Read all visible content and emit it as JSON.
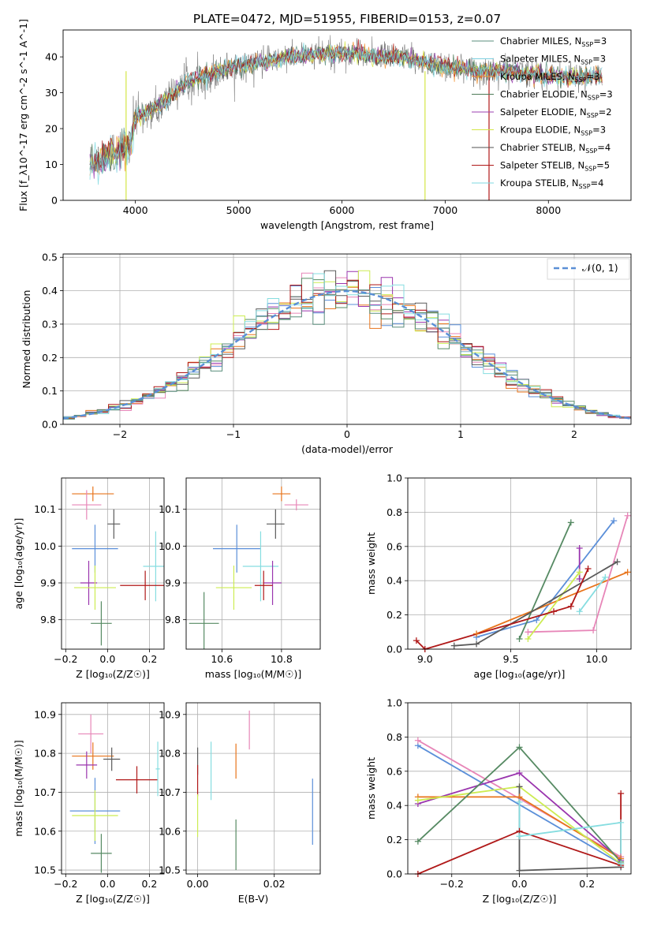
{
  "figure": {
    "title": "PLATE=0472, MJD=51955, FIBERID=0153, z=0.07"
  },
  "colors": {
    "C_MILES": "#5b8e7d",
    "S_MILES": "#7ecfe0",
    "K_MILES": "#f28e2b",
    "C_ELODIE": "#4e7a58",
    "S_ELODIE": "#9b3fb1",
    "K_ELODIE": "#d3e646",
    "C_STELIB": "#505050",
    "S_STELIB": "#b01818",
    "K_STELIB": "#7fd9e0",
    "norm": "#5a8fd6",
    "blue": "#5b8fd9",
    "orange": "#e8741b",
    "pink": "#e786b8",
    "purple": "#9a35ae",
    "green": "#568a63",
    "yellow": "#ccec52",
    "cyan": "#86dde0",
    "gray": "#5a5a5a",
    "red": "#b01818"
  },
  "chart_data": [
    {
      "id": "spectrum",
      "type": "line",
      "xlabel": "wavelength [Angstrom, rest frame]",
      "ylabel": "Flux [f_λ10^-17 erg cm^-2 s^-1 A^-1]",
      "xlim": [
        3300,
        8800
      ],
      "ylim": [
        0,
        47.5
      ],
      "xticks": [
        4000,
        5000,
        6000,
        7000,
        8000
      ],
      "yticks": [
        0,
        10,
        20,
        30,
        40
      ],
      "grid": false,
      "legend_position": "top-right",
      "continuum": [
        [
          3550,
          10
        ],
        [
          3700,
          12
        ],
        [
          3850,
          14
        ],
        [
          3950,
          15
        ],
        [
          4000,
          23
        ],
        [
          4150,
          25
        ],
        [
          4300,
          28
        ],
        [
          4500,
          33
        ],
        [
          4700,
          35
        ],
        [
          4900,
          37
        ],
        [
          5100,
          38
        ],
        [
          5300,
          39
        ],
        [
          5500,
          40
        ],
        [
          5700,
          40.5
        ],
        [
          5900,
          41
        ],
        [
          6100,
          41
        ],
        [
          6300,
          40
        ],
        [
          6500,
          40
        ],
        [
          6700,
          39
        ],
        [
          6900,
          38
        ],
        [
          7100,
          37
        ],
        [
          7300,
          36
        ],
        [
          7500,
          36
        ],
        [
          7700,
          35.5
        ],
        [
          7900,
          35
        ],
        [
          8100,
          34.5
        ],
        [
          8300,
          34.5
        ],
        [
          8500,
          34.5
        ]
      ],
      "series": [
        {
          "name": "Chabrier MILES",
          "nssp": 3,
          "color_key": "C_MILES"
        },
        {
          "name": "Salpeter MILES",
          "nssp": 3,
          "color_key": "S_MILES"
        },
        {
          "name": "Kroupa MILES",
          "nssp": 3,
          "color_key": "K_MILES"
        },
        {
          "name": "Chabrier ELODIE",
          "nssp": 3,
          "color_key": "C_ELODIE"
        },
        {
          "name": "Salpeter ELODIE",
          "nssp": 2,
          "color_key": "S_ELODIE"
        },
        {
          "name": "Kroupa ELODIE",
          "nssp": 3,
          "color_key": "K_ELODIE"
        },
        {
          "name": "Chabrier STELIB",
          "nssp": 4,
          "color_key": "C_STELIB"
        },
        {
          "name": "Salpeter STELIB",
          "nssp": 5,
          "color_key": "S_STELIB"
        },
        {
          "name": "Kroupa STELIB",
          "nssp": 4,
          "color_key": "K_STELIB"
        }
      ]
    },
    {
      "id": "residuals",
      "type": "line",
      "xlabel": "(data-model)/error",
      "ylabel": "Normed distribution",
      "xlim": [
        -2.5,
        2.5
      ],
      "ylim": [
        0,
        0.51
      ],
      "xticks": [
        -2,
        -1,
        0,
        1,
        2
      ],
      "yticks": [
        0.0,
        0.1,
        0.2,
        0.3,
        0.4,
        0.5
      ],
      "grid": true,
      "legend_position": "top-right",
      "legend_label": "𝒩(0, 1)",
      "bin_width": 0.1,
      "hist_colors": [
        "blue",
        "orange",
        "pink",
        "purple",
        "green",
        "yellow",
        "gray",
        "red",
        "cyan",
        "C_MILES"
      ]
    },
    {
      "id": "age_Z",
      "type": "scatter",
      "xlabel": "Z [log₁₀(Z/Z☉)]",
      "ylabel": "age  [log₁₀(age/yr)]",
      "xlim": [
        -0.22,
        0.27
      ],
      "ylim": [
        9.72,
        10.185
      ],
      "xticks": [
        -0.2,
        0.0,
        0.2
      ],
      "yticks": [
        9.8,
        9.9,
        10.0,
        10.1
      ],
      "grid": true,
      "points": [
        {
          "c": "orange",
          "x": -0.07,
          "y": 10.142,
          "ex": 0.1,
          "ey": 0.02
        },
        {
          "c": "pink",
          "x": -0.1,
          "y": 10.112,
          "ex": 0.07,
          "ey": 0.04
        },
        {
          "c": "gray",
          "x": 0.03,
          "y": 10.06,
          "ex": 0.03,
          "ey": 0.04
        },
        {
          "c": "blue",
          "x": -0.06,
          "y": 9.993,
          "ex": 0.11,
          "ey": 0.065
        },
        {
          "c": "cyan",
          "x": 0.23,
          "y": 9.945,
          "ex": 0.06,
          "ey": 0.095
        },
        {
          "c": "purple",
          "x": -0.09,
          "y": 9.9,
          "ex": 0.04,
          "ey": 0.06
        },
        {
          "c": "red",
          "x": 0.18,
          "y": 9.893,
          "ex": 0.12,
          "ey": 0.04
        },
        {
          "c": "yellow",
          "x": -0.06,
          "y": 9.887,
          "ex": 0.1,
          "ey": 0.06
        },
        {
          "c": "green",
          "x": -0.03,
          "y": 9.79,
          "ex": 0.05,
          "ey": 0.06
        }
      ]
    },
    {
      "id": "age_mass",
      "type": "scatter",
      "xlabel": "mass [log₁₀(M/M☉)]",
      "ylabel": "",
      "xlim": [
        10.48,
        10.93
      ],
      "ylim": [
        9.72,
        10.185
      ],
      "xticks": [
        10.6,
        10.8
      ],
      "yticks": [
        9.8,
        9.9,
        10.0,
        10.1
      ],
      "grid": true,
      "points": [
        {
          "c": "orange",
          "x": 10.8,
          "y": 10.142,
          "ex": 0.03,
          "ey": 0.02
        },
        {
          "c": "pink",
          "x": 10.85,
          "y": 10.112,
          "ex": 0.04,
          "ey": 0.015
        },
        {
          "c": "gray",
          "x": 10.78,
          "y": 10.06,
          "ex": 0.03,
          "ey": 0.04
        },
        {
          "c": "blue",
          "x": 10.65,
          "y": 9.993,
          "ex": 0.08,
          "ey": 0.065
        },
        {
          "c": "cyan",
          "x": 10.73,
          "y": 9.945,
          "ex": 0.06,
          "ey": 0.095
        },
        {
          "c": "purple",
          "x": 10.77,
          "y": 9.9,
          "ex": 0.03,
          "ey": 0.06
        },
        {
          "c": "red",
          "x": 10.74,
          "y": 9.893,
          "ex": 0.03,
          "ey": 0.04
        },
        {
          "c": "yellow",
          "x": 10.64,
          "y": 9.887,
          "ex": 0.06,
          "ey": 0.06
        },
        {
          "c": "green",
          "x": 10.54,
          "y": 9.79,
          "ex": 0.05,
          "ey": 0.085
        }
      ]
    },
    {
      "id": "weight_age",
      "type": "line",
      "xlabel": "age  [log₁₀(age/yr)]",
      "ylabel": "mass weight",
      "xlim": [
        8.9,
        10.2
      ],
      "ylim": [
        0,
        1.0
      ],
      "xticks": [
        9.0,
        9.5,
        10.0
      ],
      "yticks": [
        0.0,
        0.2,
        0.4,
        0.6,
        0.8,
        1.0
      ],
      "grid": true,
      "series": [
        {
          "c": "blue",
          "pts": [
            [
              9.3,
              0.07
            ],
            [
              9.65,
              0.17
            ],
            [
              10.1,
              0.75
            ]
          ]
        },
        {
          "c": "orange",
          "pts": [
            [
              9.3,
              0.09
            ],
            [
              10.18,
              0.45
            ]
          ]
        },
        {
          "c": "pink",
          "pts": [
            [
              9.6,
              0.1
            ],
            [
              9.98,
              0.11
            ],
            [
              10.18,
              0.78
            ]
          ]
        },
        {
          "c": "purple",
          "pts": [
            [
              9.9,
              0.41
            ],
            [
              9.9,
              0.59
            ]
          ]
        },
        {
          "c": "green",
          "pts": [
            [
              9.55,
              0.06
            ],
            [
              9.85,
              0.74
            ]
          ]
        },
        {
          "c": "yellow",
          "pts": [
            [
              9.6,
              0.06
            ],
            [
              9.9,
              0.45
            ]
          ]
        },
        {
          "c": "gray",
          "pts": [
            [
              9.17,
              0.02
            ],
            [
              9.3,
              0.03
            ],
            [
              10.12,
              0.51
            ]
          ]
        },
        {
          "c": "red",
          "pts": [
            [
              8.95,
              0.05
            ],
            [
              9.0,
              0.0
            ],
            [
              9.75,
              0.22
            ],
            [
              9.85,
              0.25
            ],
            [
              9.95,
              0.47
            ]
          ]
        },
        {
          "c": "cyan",
          "pts": [
            [
              9.9,
              0.22
            ],
            [
              10.05,
              0.42
            ]
          ]
        }
      ]
    },
    {
      "id": "mass_Z",
      "type": "scatter",
      "xlabel": "Z [log₁₀(Z/Z☉)]",
      "ylabel": "mass [log₁₀(M/M☉)]",
      "xlim": [
        -0.22,
        0.27
      ],
      "ylim": [
        10.49,
        10.93
      ],
      "xticks": [
        -0.2,
        0.0,
        0.2
      ],
      "yticks": [
        10.5,
        10.6,
        10.7,
        10.8,
        10.9
      ],
      "grid": true,
      "points": [
        {
          "c": "pink",
          "x": -0.08,
          "y": 10.85,
          "ex": 0.06,
          "ey": 0.05
        },
        {
          "c": "orange",
          "x": -0.07,
          "y": 10.793,
          "ex": 0.1,
          "ey": 0.035
        },
        {
          "c": "gray",
          "x": 0.02,
          "y": 10.785,
          "ex": 0.04,
          "ey": 0.03
        },
        {
          "c": "purple",
          "x": -0.1,
          "y": 10.77,
          "ex": 0.05,
          "ey": 0.035
        },
        {
          "c": "red",
          "x": 0.14,
          "y": 10.732,
          "ex": 0.1,
          "ey": 0.035
        },
        {
          "c": "cyan",
          "x": 0.24,
          "y": 10.76,
          "ex": 0.01,
          "ey": 0.07
        },
        {
          "c": "blue",
          "x": -0.06,
          "y": 10.652,
          "ex": 0.12,
          "ey": 0.085
        },
        {
          "c": "yellow",
          "x": -0.06,
          "y": 10.64,
          "ex": 0.11,
          "ey": 0.065
        },
        {
          "c": "green",
          "x": -0.03,
          "y": 10.543,
          "ex": 0.05,
          "ey": 0.05
        }
      ]
    },
    {
      "id": "mass_ebv",
      "type": "scatter",
      "xlabel": "E(B-V)",
      "ylabel": "",
      "xlim": [
        -0.003,
        0.032
      ],
      "ylim": [
        10.49,
        10.93
      ],
      "xticks": [
        0.0,
        0.02
      ],
      "yticks": [
        10.5,
        10.6,
        10.7,
        10.8,
        10.9
      ],
      "grid": true,
      "points": [
        {
          "c": "pink",
          "x": 0.0135,
          "y": 10.86,
          "ex": 0,
          "ey": 0.05
        },
        {
          "c": "orange",
          "x": 0.01,
          "y": 10.78,
          "ex": 0,
          "ey": 0.045
        },
        {
          "c": "gray",
          "x": 0.0,
          "y": 10.78,
          "ex": 0,
          "ey": 0.035
        },
        {
          "c": "red",
          "x": 0.0,
          "y": 10.73,
          "ex": 0,
          "ey": 0.04
        },
        {
          "c": "cyan",
          "x": 0.0035,
          "y": 10.755,
          "ex": 0,
          "ey": 0.075
        },
        {
          "c": "yellow",
          "x": 0.0,
          "y": 10.64,
          "ex": 0,
          "ey": 0.055
        },
        {
          "c": "blue",
          "x": 0.03,
          "y": 10.65,
          "ex": 0,
          "ey": 0.085
        },
        {
          "c": "green",
          "x": 0.01,
          "y": 10.565,
          "ex": 0,
          "ey": 0.065
        }
      ]
    },
    {
      "id": "weight_Z",
      "type": "line",
      "xlabel": "Z [log₁₀(Z/Z☉)]",
      "ylabel": "mass weight",
      "xlim": [
        -0.33,
        0.33
      ],
      "ylim": [
        0,
        1.0
      ],
      "xticks": [
        -0.2,
        0.0,
        0.2
      ],
      "yticks": [
        0.0,
        0.2,
        0.4,
        0.6,
        0.8,
        1.0
      ],
      "grid": true,
      "series": [
        {
          "c": "blue",
          "pts": [
            [
              -0.3,
              0.75
            ],
            [
              0.3,
              0.06
            ]
          ]
        },
        {
          "c": "pink",
          "pts": [
            [
              -0.3,
              0.78
            ],
            [
              0.3,
              0.1
            ]
          ]
        },
        {
          "c": "purple",
          "pts": [
            [
              -0.3,
              0.41
            ],
            [
              0.0,
              0.59
            ],
            [
              0.3,
              0.08
            ]
          ]
        },
        {
          "c": "orange",
          "pts": [
            [
              -0.3,
              0.45
            ],
            [
              0.0,
              0.45
            ],
            [
              0.3,
              0.09
            ]
          ]
        },
        {
          "c": "yellow",
          "pts": [
            [
              -0.3,
              0.43
            ],
            [
              0.0,
              0.51
            ],
            [
              0.3,
              0.06
            ]
          ]
        },
        {
          "c": "green",
          "pts": [
            [
              -0.3,
              0.19
            ],
            [
              0.0,
              0.74
            ],
            [
              0.3,
              0.07
            ]
          ]
        },
        {
          "c": "gray",
          "pts": [
            [
              0.0,
              0.51
            ],
            [
              0.0,
              0.02
            ],
            [
              0.3,
              0.04
            ]
          ]
        },
        {
          "c": "red",
          "pts": [
            [
              -0.3,
              0.0
            ],
            [
              0.0,
              0.25
            ],
            [
              0.3,
              0.05
            ],
            [
              0.3,
              0.47
            ]
          ]
        },
        {
          "c": "cyan",
          "pts": [
            [
              0.0,
              0.42
            ],
            [
              0.0,
              0.22
            ],
            [
              0.3,
              0.3
            ],
            [
              0.3,
              0.06
            ]
          ]
        }
      ]
    }
  ]
}
